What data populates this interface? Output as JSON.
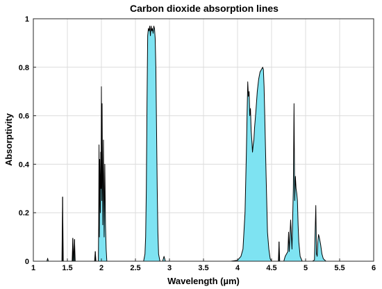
{
  "chart_data": {
    "type": "area",
    "title": "Carbon dioxide absorption lines",
    "xlabel": "Wavelength (µm)",
    "ylabel": "Absorptivity",
    "xlim": [
      1,
      6
    ],
    "ylim": [
      0,
      1
    ],
    "xticks": [
      "1",
      "1.5",
      "2",
      "2.5",
      "3",
      "3.5",
      "4",
      "4.5",
      "5",
      "5.5",
      "6"
    ],
    "yticks": [
      "0",
      "0.2",
      "0.4",
      "0.6",
      "0.8",
      "1"
    ],
    "grid": true,
    "fill_color": "#7ee3f2",
    "line_color": "#000000",
    "series": [
      {
        "values": [
          [
            1.0,
            0
          ],
          [
            1.2,
            0
          ],
          [
            1.21,
            0.012
          ],
          [
            1.22,
            0
          ],
          [
            1.42,
            0
          ],
          [
            1.43,
            0.265
          ],
          [
            1.44,
            0
          ],
          [
            1.57,
            0
          ],
          [
            1.58,
            0.095
          ],
          [
            1.59,
            0
          ],
          [
            1.605,
            0.09
          ],
          [
            1.615,
            0
          ],
          [
            1.9,
            0
          ],
          [
            1.91,
            0.04
          ],
          [
            1.92,
            0
          ],
          [
            1.955,
            0
          ],
          [
            1.96,
            0.15
          ],
          [
            1.965,
            0.48
          ],
          [
            1.97,
            0.1
          ],
          [
            1.975,
            0.42
          ],
          [
            1.985,
            0.2
          ],
          [
            1.99,
            0.45
          ],
          [
            1.995,
            0.3
          ],
          [
            2.0,
            0.72
          ],
          [
            2.005,
            0.25
          ],
          [
            2.01,
            0.65
          ],
          [
            2.02,
            0.15
          ],
          [
            2.03,
            0.5
          ],
          [
            2.04,
            0.1
          ],
          [
            2.05,
            0.4
          ],
          [
            2.06,
            0.15
          ],
          [
            2.07,
            0.05
          ],
          [
            2.08,
            0
          ],
          [
            2.62,
            0
          ],
          [
            2.64,
            0.03
          ],
          [
            2.65,
            0.1
          ],
          [
            2.66,
            0.3
          ],
          [
            2.67,
            0.65
          ],
          [
            2.68,
            0.93
          ],
          [
            2.69,
            0.96
          ],
          [
            2.7,
            0.95
          ],
          [
            2.71,
            0.97
          ],
          [
            2.72,
            0.93
          ],
          [
            2.73,
            0.97
          ],
          [
            2.74,
            0.95
          ],
          [
            2.75,
            0.96
          ],
          [
            2.76,
            0.94
          ],
          [
            2.77,
            0.97
          ],
          [
            2.78,
            0.96
          ],
          [
            2.79,
            0.92
          ],
          [
            2.8,
            0.8
          ],
          [
            2.81,
            0.55
          ],
          [
            2.82,
            0.3
          ],
          [
            2.83,
            0.12
          ],
          [
            2.84,
            0.03
          ],
          [
            2.86,
            0
          ],
          [
            2.9,
            0
          ],
          [
            2.92,
            0.02
          ],
          [
            2.94,
            0
          ],
          [
            3.9,
            0
          ],
          [
            4.0,
            0.004
          ],
          [
            4.05,
            0.02
          ],
          [
            4.08,
            0.05
          ],
          [
            4.11,
            0.2
          ],
          [
            4.13,
            0.45
          ],
          [
            4.14,
            0.6
          ],
          [
            4.15,
            0.74
          ],
          [
            4.16,
            0.68
          ],
          [
            4.17,
            0.7
          ],
          [
            4.18,
            0.6
          ],
          [
            4.19,
            0.63
          ],
          [
            4.2,
            0.54
          ],
          [
            4.21,
            0.5
          ],
          [
            4.22,
            0.45
          ],
          [
            4.23,
            0.48
          ],
          [
            4.24,
            0.5
          ],
          [
            4.25,
            0.55
          ],
          [
            4.27,
            0.62
          ],
          [
            4.29,
            0.7
          ],
          [
            4.31,
            0.75
          ],
          [
            4.33,
            0.78
          ],
          [
            4.35,
            0.79
          ],
          [
            4.37,
            0.8
          ],
          [
            4.38,
            0.79
          ],
          [
            4.39,
            0.72
          ],
          [
            4.4,
            0.6
          ],
          [
            4.42,
            0.35
          ],
          [
            4.44,
            0.12
          ],
          [
            4.46,
            0.05
          ],
          [
            4.48,
            0.01
          ],
          [
            4.5,
            0
          ],
          [
            4.6,
            0
          ],
          [
            4.61,
            0.08
          ],
          [
            4.62,
            0
          ],
          [
            4.68,
            0
          ],
          [
            4.7,
            0.02
          ],
          [
            4.74,
            0.04
          ],
          [
            4.75,
            0.12
          ],
          [
            4.76,
            0.04
          ],
          [
            4.78,
            0.17
          ],
          [
            4.8,
            0.05
          ],
          [
            4.82,
            0.3
          ],
          [
            4.83,
            0.65
          ],
          [
            4.835,
            0.45
          ],
          [
            4.84,
            0.25
          ],
          [
            4.85,
            0.35
          ],
          [
            4.86,
            0.3
          ],
          [
            4.87,
            0.28
          ],
          [
            4.88,
            0.25
          ],
          [
            4.89,
            0.15
          ],
          [
            4.9,
            0.08
          ],
          [
            4.92,
            0.02
          ],
          [
            4.95,
            0
          ],
          [
            5.1,
            0
          ],
          [
            5.13,
            0.005
          ],
          [
            5.15,
            0.23
          ],
          [
            5.16,
            0.03
          ],
          [
            5.17,
            0.02
          ],
          [
            5.18,
            0.08
          ],
          [
            5.19,
            0.11
          ],
          [
            5.2,
            0.1
          ],
          [
            5.22,
            0.07
          ],
          [
            5.24,
            0.03
          ],
          [
            5.26,
            0.01
          ],
          [
            5.3,
            0
          ],
          [
            6.0,
            0
          ]
        ]
      }
    ]
  }
}
